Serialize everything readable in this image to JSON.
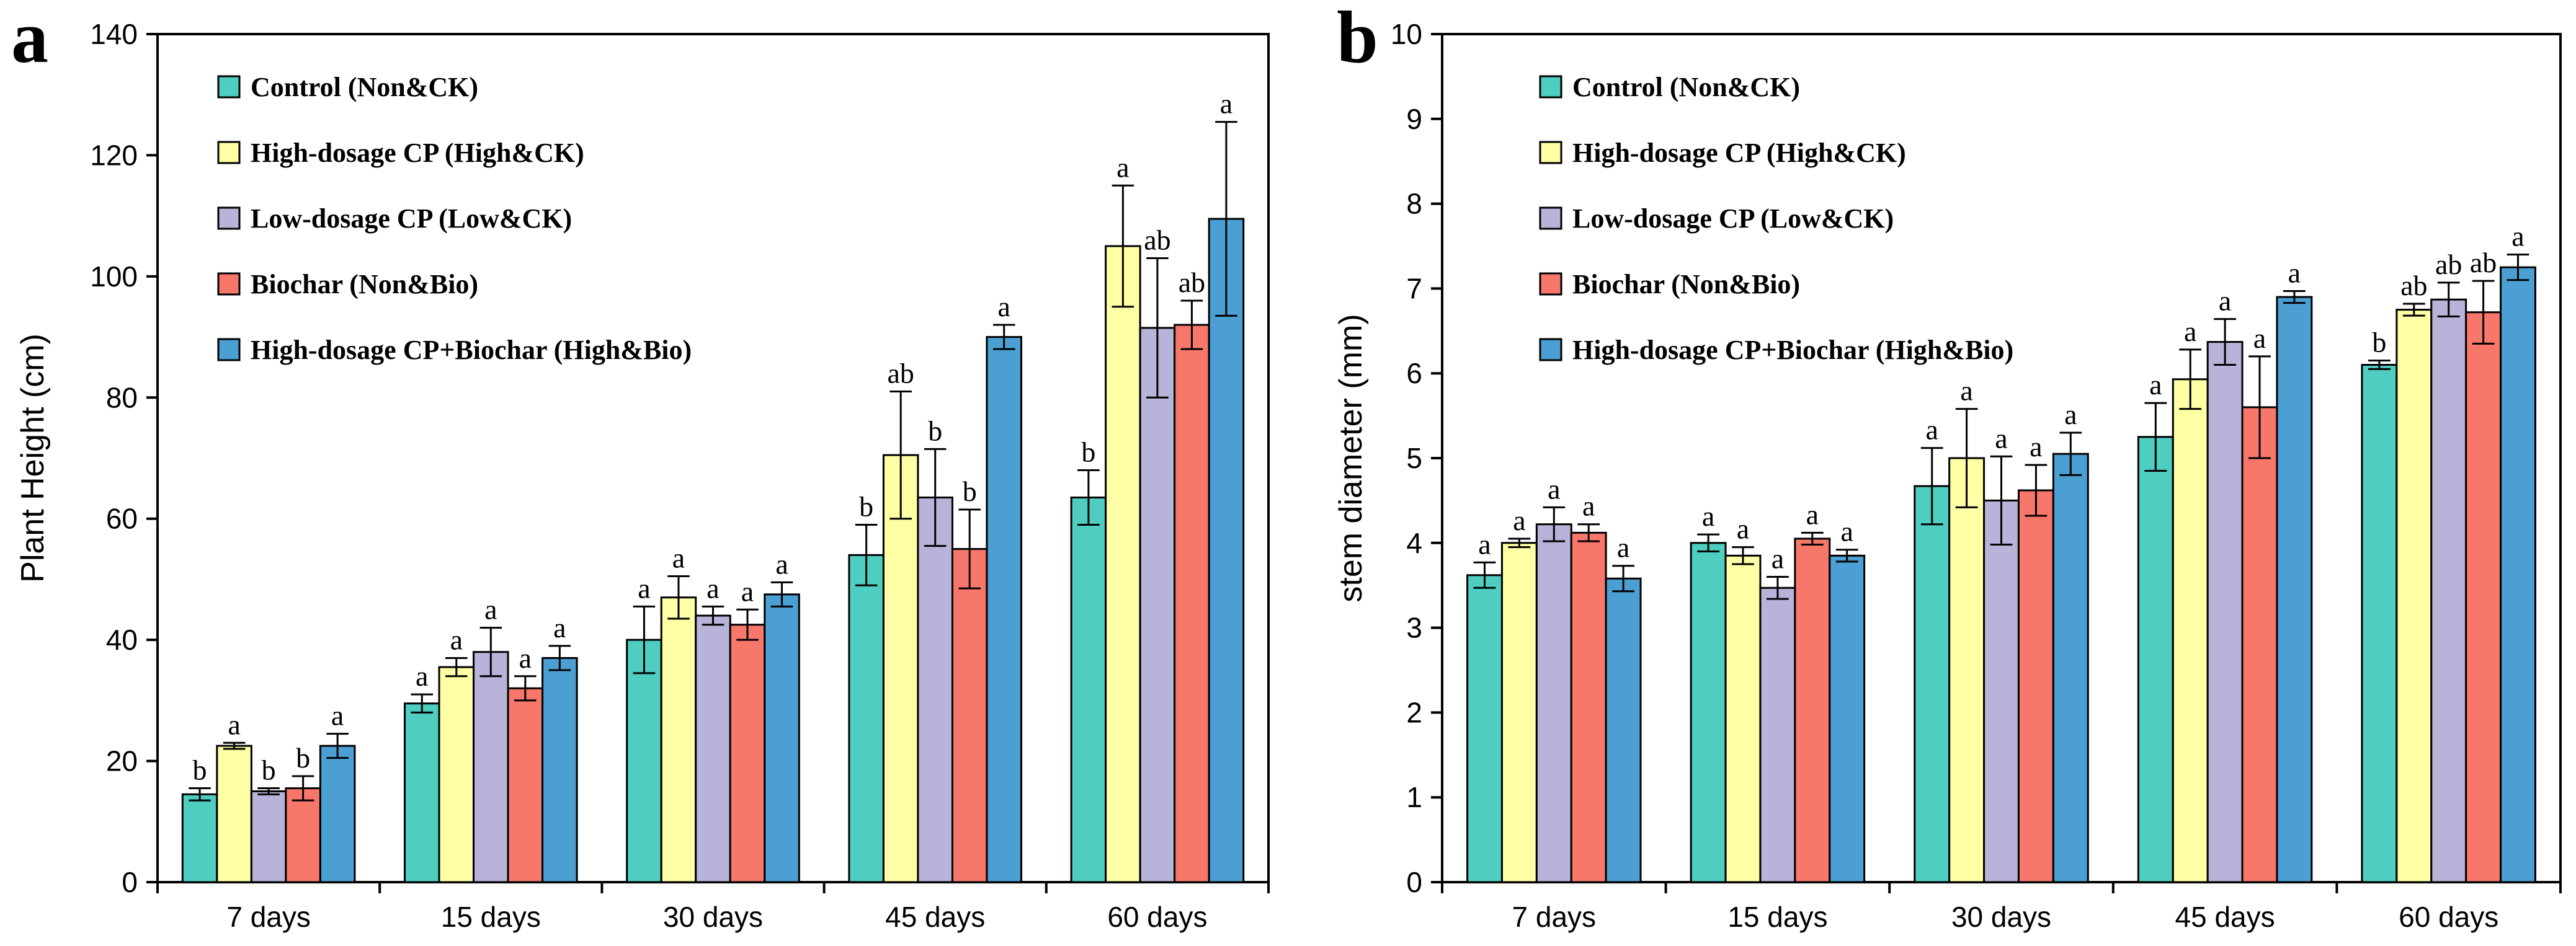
{
  "chart_data": [
    {
      "panel_label": "a",
      "type": "bar",
      "categories": [
        "7 days",
        "15 days",
        "30 days",
        "45 days",
        "60 days"
      ],
      "ylabel": "Plant Height (cm)",
      "xlabel": "",
      "ylim": [
        0,
        140
      ],
      "yticks": [
        0,
        20,
        40,
        60,
        80,
        100,
        120,
        140
      ],
      "grid": false,
      "legend_position": "top-left",
      "series": [
        {
          "name": "Control  (Non&CK)",
          "color": "#4ecdc0",
          "values": [
            14.5,
            29.5,
            40,
            54,
            63.5
          ],
          "errors": [
            1,
            1.5,
            5.5,
            5,
            4.5
          ],
          "labels": [
            "b",
            "a",
            "a",
            "b",
            "b"
          ]
        },
        {
          "name": "High-dosage CP (High&CK)",
          "color": "#ffffa6",
          "values": [
            22.5,
            35.5,
            47,
            70.5,
            105
          ],
          "errors": [
            0.5,
            1.5,
            3.5,
            10.5,
            10
          ],
          "labels": [
            "a",
            "a",
            "a",
            "ab",
            "a"
          ]
        },
        {
          "name": "Low-dosage CP (Low&CK)",
          "color": "#b8b3d8",
          "values": [
            15,
            38,
            44,
            63.5,
            91.5
          ],
          "errors": [
            0.5,
            4,
            1.5,
            8,
            11.5
          ],
          "labels": [
            "b",
            "a",
            "a",
            "b",
            "ab"
          ]
        },
        {
          "name": "Biochar  (Non&Bio)",
          "color": "#f8776b",
          "values": [
            15.5,
            32,
            42.5,
            55,
            92
          ],
          "errors": [
            2,
            2,
            2.5,
            6.5,
            4
          ],
          "labels": [
            "b",
            "a",
            "a",
            "b",
            "ab"
          ]
        },
        {
          "name": "High-dosage CP+Biochar (High&Bio)",
          "color": "#4b9fd2",
          "values": [
            22.5,
            37,
            47.5,
            90,
            109.5
          ],
          "errors": [
            2,
            2,
            2,
            2,
            16
          ],
          "labels": [
            "a",
            "a",
            "a",
            "a",
            "a"
          ]
        }
      ]
    },
    {
      "panel_label": "b",
      "type": "bar",
      "categories": [
        "7 days",
        "15 days",
        "30 days",
        "45 days",
        "60 days"
      ],
      "ylabel": "stem diameter (mm)",
      "xlabel": "",
      "ylim": [
        0,
        10
      ],
      "yticks": [
        0,
        1,
        2,
        3,
        4,
        5,
        6,
        7,
        8,
        9,
        10
      ],
      "grid": false,
      "legend_position": "top-left",
      "series": [
        {
          "name": "Control  (Non&CK)",
          "color": "#4ecdc0",
          "values": [
            3.62,
            4.0,
            4.67,
            5.25,
            6.1
          ],
          "errors": [
            0.15,
            0.1,
            0.45,
            0.4,
            0.05
          ],
          "labels": [
            "a",
            "a",
            "a",
            "a",
            "b"
          ]
        },
        {
          "name": "High-dosage CP (High&CK)",
          "color": "#ffffa6",
          "values": [
            4.0,
            3.85,
            5.0,
            5.93,
            6.75
          ],
          "errors": [
            0.05,
            0.1,
            0.58,
            0.35,
            0.07
          ],
          "labels": [
            "a",
            "a",
            "a",
            "a",
            "ab"
          ]
        },
        {
          "name": "Low-dosage CP (Low&CK)",
          "color": "#b8b3d8",
          "values": [
            4.22,
            3.47,
            4.5,
            6.37,
            6.87
          ],
          "errors": [
            0.2,
            0.13,
            0.52,
            0.27,
            0.2
          ],
          "labels": [
            "a",
            "a",
            "a",
            "a",
            "ab"
          ]
        },
        {
          "name": "Biochar  (Non&Bio)",
          "color": "#f8776b",
          "values": [
            4.12,
            4.05,
            4.62,
            5.6,
            6.72
          ],
          "errors": [
            0.1,
            0.07,
            0.3,
            0.6,
            0.37
          ],
          "labels": [
            "a",
            "a",
            "a",
            "a",
            "ab"
          ]
        },
        {
          "name": "High-dosage CP+Biochar (High&Bio)",
          "color": "#4b9fd2",
          "values": [
            3.58,
            3.85,
            5.05,
            6.9,
            7.25
          ],
          "errors": [
            0.15,
            0.07,
            0.25,
            0.07,
            0.15
          ],
          "labels": [
            "a",
            "a",
            "a",
            "a",
            "a"
          ]
        }
      ]
    }
  ]
}
